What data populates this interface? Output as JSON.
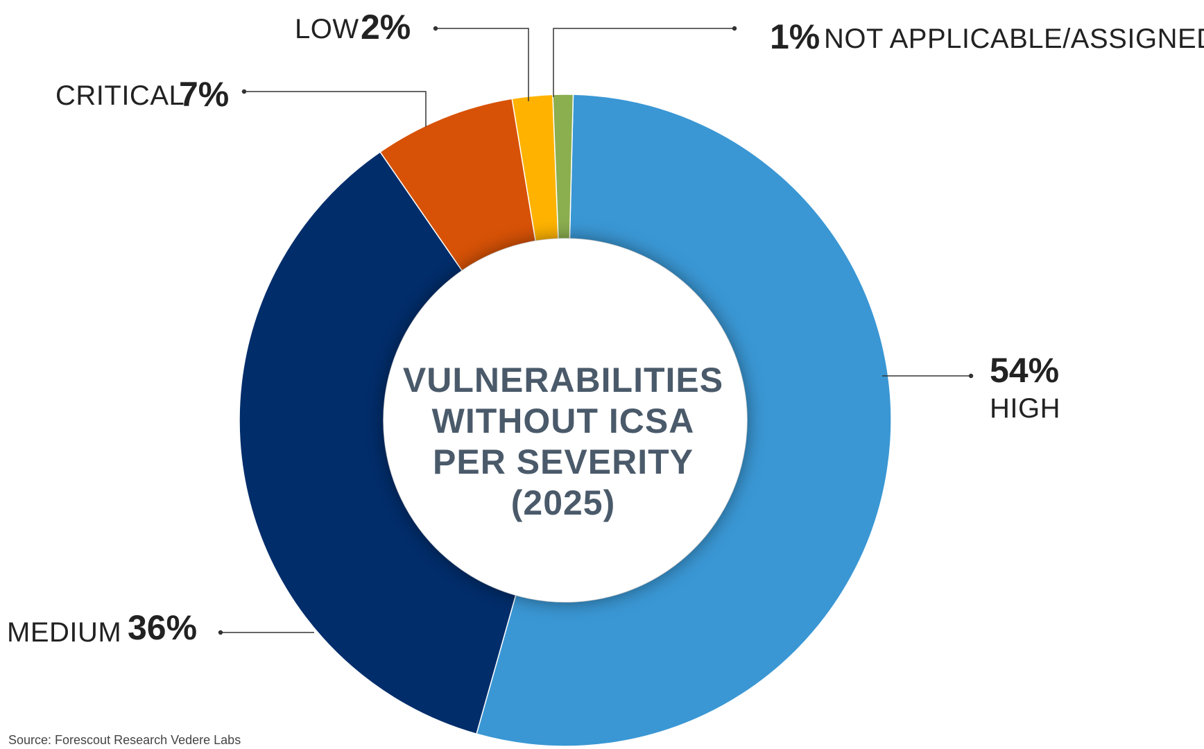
{
  "chart_data": {
    "type": "pie",
    "variant": "donut",
    "title_lines": [
      "VULNERABILITIES",
      "WITHOUT ICSA",
      "PER SEVERITY",
      "(2025)"
    ],
    "source": "Source: Forescout Research Vedere Labs",
    "slices": [
      {
        "label": "HIGH",
        "value": 54,
        "value_label": "54%",
        "color": "#3a97d4"
      },
      {
        "label": "MEDIUM",
        "value": 36,
        "value_label": "36%",
        "color": "#012d6b"
      },
      {
        "label": "CRITICAL",
        "value": 7,
        "value_label": "7%",
        "color": "#d75206"
      },
      {
        "label": "LOW",
        "value": 2,
        "value_label": "2%",
        "color": "#ffb300"
      },
      {
        "label": "NOT APPLICABLE/ASSIGNED",
        "value": 1,
        "value_label": "1%",
        "color": "#8bae4f"
      }
    ]
  }
}
